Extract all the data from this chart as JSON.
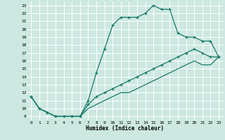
{
  "xlabel": "Humidex (Indice chaleur)",
  "bg_color": "#cce8e0",
  "grid_color": "#ffffff",
  "line_color": "#1a7a6a",
  "xlim": [
    -0.5,
    23.5
  ],
  "ylim": [
    8.5,
    23.5
  ],
  "yticks": [
    9,
    10,
    11,
    12,
    13,
    14,
    15,
    16,
    17,
    18,
    19,
    20,
    21,
    22,
    23
  ],
  "xticks": [
    0,
    1,
    2,
    3,
    4,
    5,
    6,
    7,
    8,
    9,
    10,
    11,
    12,
    13,
    14,
    15,
    16,
    17,
    18,
    19,
    20,
    21,
    22,
    23
  ],
  "line1_x": [
    0,
    1,
    2,
    3,
    4,
    5,
    6,
    7,
    8,
    9,
    10,
    11,
    12,
    13,
    14,
    15,
    16,
    17,
    18,
    19,
    20,
    21,
    22,
    23
  ],
  "line1_y": [
    11.5,
    10,
    9.5,
    9,
    9,
    9,
    9,
    11,
    14.5,
    17.5,
    20.5,
    21.5,
    21.5,
    21.5,
    22.0,
    23.0,
    22.5,
    22.5,
    19.5,
    19,
    19,
    18.5,
    18.5,
    16.5
  ],
  "line2_x": [
    0,
    1,
    2,
    3,
    4,
    5,
    6,
    7,
    8,
    9,
    10,
    11,
    12,
    13,
    14,
    15,
    16,
    17,
    18,
    19,
    20,
    21,
    22,
    23
  ],
  "line2_y": [
    11.5,
    10,
    9.5,
    9,
    9,
    9,
    9,
    10.5,
    11.5,
    12,
    12.5,
    13,
    13.5,
    14,
    14.5,
    15,
    15.5,
    16,
    16.5,
    17,
    17.5,
    17,
    16.5,
    16.5
  ],
  "line3_x": [
    0,
    1,
    2,
    3,
    4,
    5,
    6,
    7,
    8,
    9,
    10,
    11,
    12,
    13,
    14,
    15,
    16,
    17,
    18,
    19,
    20,
    21,
    22,
    23
  ],
  "line3_y": [
    11.5,
    10,
    9.5,
    9,
    9,
    9,
    9,
    10,
    10.5,
    11,
    11.5,
    12,
    12,
    12.5,
    13,
    13.5,
    14,
    14.5,
    15,
    15.5,
    16,
    15.5,
    15.5,
    16.5
  ],
  "marker_x1": [
    0,
    1,
    2,
    3,
    4,
    5,
    6,
    7,
    8,
    9,
    10,
    11,
    12,
    13,
    14,
    15,
    16,
    17,
    18,
    19,
    20,
    21,
    22,
    23
  ],
  "marker_y1": [
    11.5,
    10,
    9.5,
    9,
    9,
    9,
    9,
    11,
    14.5,
    17.5,
    20.5,
    21.5,
    21.5,
    21.5,
    22.0,
    23.0,
    22.5,
    22.5,
    19.5,
    19,
    19,
    18.5,
    18.5,
    16.5
  ]
}
